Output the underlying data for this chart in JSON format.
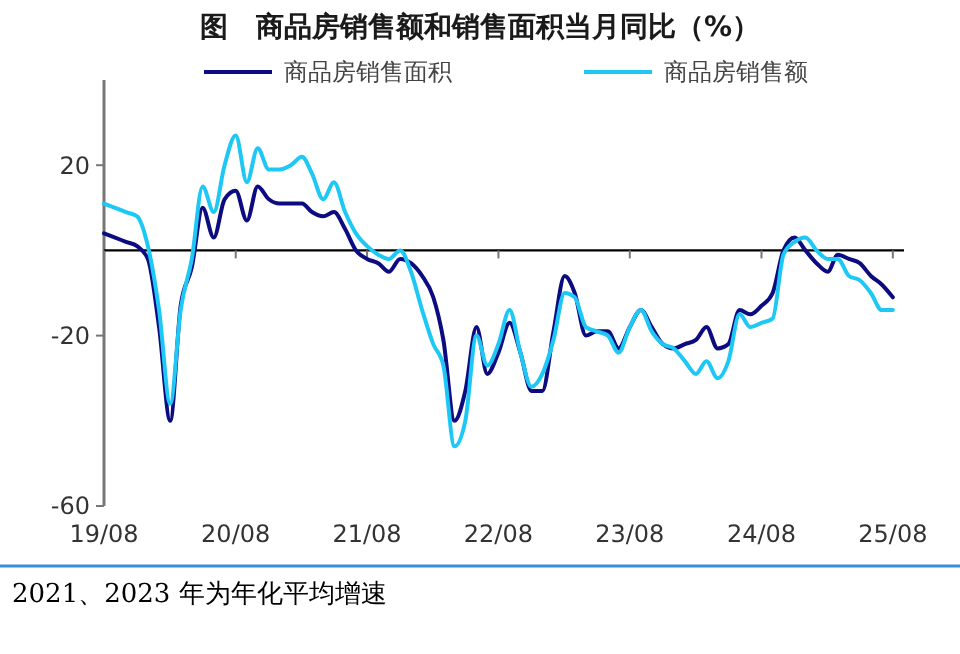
{
  "chart_data": {
    "type": "line",
    "title": "图　商品房销售额和销售面积当月同比（%）",
    "annotations": [
      "2021、2023 年为年化平均增速"
    ],
    "x": [
      "2019-08",
      "2019-09",
      "2019-10",
      "2019-11",
      "2019-12",
      "2020-01",
      "2020-02",
      "2020-03",
      "2020-04",
      "2020-05",
      "2020-06",
      "2020-07",
      "2020-08",
      "2020-09",
      "2020-10",
      "2020-11",
      "2020-12",
      "2021-01",
      "2021-02",
      "2021-03",
      "2021-04",
      "2021-05",
      "2021-06",
      "2021-07",
      "2021-08",
      "2021-09",
      "2021-10",
      "2021-11",
      "2021-12",
      "2022-01",
      "2022-02",
      "2022-03",
      "2022-04",
      "2022-05",
      "2022-06",
      "2022-07",
      "2022-08",
      "2022-09",
      "2022-10",
      "2022-11",
      "2022-12",
      "2023-01",
      "2023-02",
      "2023-03",
      "2023-04",
      "2023-05",
      "2023-06",
      "2023-07",
      "2023-08",
      "2023-09",
      "2023-10",
      "2023-11",
      "2023-12",
      "2024-01",
      "2024-02",
      "2024-03",
      "2024-04",
      "2024-05",
      "2024-06",
      "2024-07",
      "2024-08",
      "2024-09",
      "2024-10",
      "2024-11",
      "2024-12",
      "2025-01",
      "2025-02",
      "2025-03",
      "2025-04",
      "2025-05",
      "2025-06",
      "2025-07",
      "2025-08"
    ],
    "series": [
      {
        "name": "商品房销售面积",
        "color": "#0c0c80",
        "values": [
          4,
          3,
          2,
          1,
          -2,
          -18,
          -40,
          -13,
          -4,
          10,
          3,
          12,
          14,
          7,
          15,
          12,
          11,
          11,
          11,
          9,
          8,
          9,
          5,
          0,
          -2,
          -3,
          -5,
          -2,
          -3,
          -6,
          -11,
          -21,
          -40,
          -33,
          -18,
          -29,
          -24,
          -17,
          -24,
          -33,
          -33,
          -19,
          -6,
          -10,
          -20,
          -19,
          -19,
          -23,
          -18,
          -14,
          -18,
          -22,
          -23,
          -22,
          -21,
          -18,
          -23,
          -22,
          -14,
          -15,
          -13,
          -10,
          0,
          3,
          0,
          -3,
          -5,
          -1,
          -2,
          -3,
          -6,
          -8,
          -11
        ]
      },
      {
        "name": "商品房销售额",
        "color": "#1ec8f5",
        "values": [
          11,
          10,
          9,
          8,
          1,
          -14,
          -36,
          -14,
          -2,
          15,
          9,
          20,
          27,
          16,
          24,
          19,
          19,
          20,
          22,
          18,
          12,
          16,
          9,
          4,
          1,
          -1,
          -2,
          0,
          -5,
          -14,
          -22,
          -27,
          -46,
          -40,
          -20,
          -27,
          -22,
          -14,
          -24,
          -32,
          -29,
          -21,
          -10,
          -11,
          -18,
          -19,
          -20,
          -24,
          -18,
          -14,
          -19,
          -22,
          -23,
          -26,
          -29,
          -26,
          -30,
          -26,
          -15,
          -18,
          -17,
          -16,
          -1,
          2,
          3,
          0,
          -2,
          -2,
          -6,
          -7,
          -10,
          -14,
          -14
        ]
      }
    ],
    "xlim": [
      "2019-08",
      "2025-09"
    ],
    "xticks": [
      {
        "value": "2019-08",
        "label": "19/08"
      },
      {
        "value": "2020-08",
        "label": "20/08"
      },
      {
        "value": "2021-08",
        "label": "21/08"
      },
      {
        "value": "2022-08",
        "label": "22/08"
      },
      {
        "value": "2023-08",
        "label": "23/08"
      },
      {
        "value": "2024-08",
        "label": "24/08"
      },
      {
        "value": "2025-08",
        "label": "25/08"
      }
    ],
    "ylim": [
      -60,
      40
    ],
    "yticks": [
      -60,
      -20,
      20
    ],
    "legend": "top"
  }
}
